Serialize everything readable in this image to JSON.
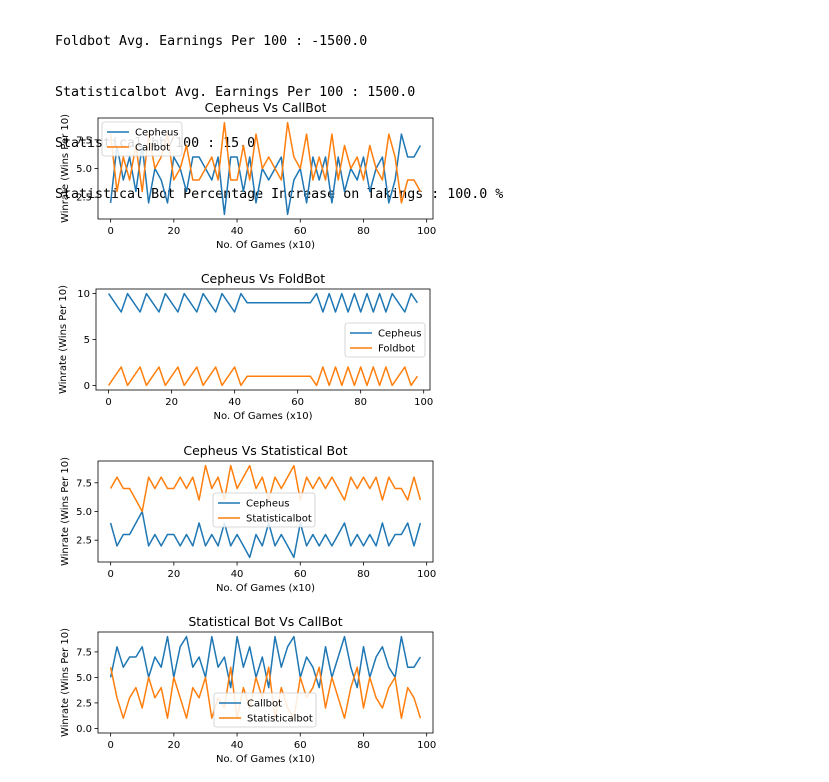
{
  "output_lines": [
    "Foldbot Avg. Earnings Per 100 : -1500.0",
    "Statisticalbot Avg. Earnings Per 100 : 1500.0",
    "Statistical bb/100 : 15.0",
    "Statistical Bot Percentage Increase on Takings : 100.0 %"
  ],
  "colors": {
    "series1": "#1f77b4",
    "series2": "#ff7f0e"
  },
  "chart_data": [
    {
      "type": "line",
      "title": "Cepheus Vs CallBot",
      "xlabel": "No. Of Games (x10)",
      "ylabel": "Winrate (Wins Per 10)",
      "x": [
        0,
        2,
        4,
        6,
        8,
        10,
        12,
        14,
        16,
        18,
        20,
        22,
        24,
        26,
        28,
        30,
        32,
        34,
        36,
        38,
        40,
        42,
        44,
        46,
        48,
        50,
        52,
        54,
        56,
        58,
        60,
        62,
        64,
        66,
        68,
        70,
        72,
        74,
        76,
        78,
        80,
        82,
        84,
        86,
        88,
        90,
        92,
        94,
        96,
        98
      ],
      "xlim": [
        -4,
        102
      ],
      "ylim": [
        0.6,
        9.4
      ],
      "xticks": [
        0,
        20,
        40,
        60,
        80,
        100
      ],
      "xtick_labels": [
        "0",
        "20",
        "40",
        "60",
        "80",
        "100"
      ],
      "yticks": [
        2.5,
        5.0,
        7.5
      ],
      "ytick_labels": [
        "2.5",
        "5.0",
        "7.5"
      ],
      "legend": "upper left",
      "series": [
        {
          "name": "Cepheus",
          "values": [
            2,
            7,
            4,
            6,
            3,
            7,
            2,
            5,
            4,
            2,
            6,
            5,
            3,
            6,
            6,
            5,
            4,
            6,
            1,
            6,
            6,
            3,
            6,
            2,
            5,
            4,
            5,
            6,
            1,
            4,
            5,
            2,
            6,
            4,
            6,
            2,
            6,
            3,
            5,
            4,
            6,
            3,
            5,
            6,
            2,
            4,
            8,
            6,
            6,
            7
          ]
        },
        {
          "name": "Callbot",
          "values": [
            8,
            3,
            6,
            4,
            7,
            3,
            8,
            5,
            6,
            8,
            4,
            5,
            7,
            4,
            4,
            5,
            6,
            4,
            9,
            4,
            4,
            7,
            4,
            8,
            5,
            6,
            5,
            4,
            9,
            6,
            5,
            8,
            4,
            6,
            4,
            8,
            4,
            7,
            5,
            6,
            4,
            7,
            5,
            4,
            8,
            6,
            2,
            4,
            4,
            3
          ]
        }
      ]
    },
    {
      "type": "line",
      "title": "Cepheus Vs FoldBot",
      "xlabel": "No. Of Games (x10)",
      "ylabel": "Winrate (Wins Per 10)",
      "x": [
        0,
        2,
        4,
        6,
        8,
        10,
        12,
        14,
        16,
        18,
        20,
        22,
        24,
        26,
        28,
        30,
        32,
        34,
        36,
        38,
        40,
        42,
        44,
        46,
        48,
        50,
        52,
        54,
        56,
        58,
        60,
        62,
        64,
        66,
        68,
        70,
        72,
        74,
        76,
        78,
        80,
        82,
        84,
        86,
        88,
        90,
        92,
        94,
        96,
        98
      ],
      "xlim": [
        -4,
        102
      ],
      "ylim": [
        -0.5,
        10.5
      ],
      "xticks": [
        0,
        20,
        40,
        60,
        80,
        100
      ],
      "xtick_labels": [
        "0",
        "20",
        "40",
        "60",
        "80",
        "100"
      ],
      "yticks": [
        0,
        5,
        10
      ],
      "ytick_labels": [
        "0",
        "5",
        "10"
      ],
      "legend": "center right",
      "series": [
        {
          "name": "Cepheus",
          "values": [
            10,
            9,
            8,
            10,
            9,
            8,
            10,
            9,
            8,
            10,
            9,
            8,
            10,
            9,
            8,
            10,
            9,
            8,
            10,
            9,
            8,
            10,
            9,
            9,
            9,
            9,
            9,
            9,
            9,
            9,
            9,
            9,
            9,
            10,
            8,
            10,
            8,
            10,
            8,
            10,
            8,
            10,
            8,
            10,
            8,
            10,
            9,
            8,
            10,
            9
          ]
        },
        {
          "name": "Foldbot",
          "values": [
            0,
            1,
            2,
            0,
            1,
            2,
            0,
            1,
            2,
            0,
            1,
            2,
            0,
            1,
            2,
            0,
            1,
            2,
            0,
            1,
            2,
            0,
            1,
            1,
            1,
            1,
            1,
            1,
            1,
            1,
            1,
            1,
            1,
            0,
            2,
            0,
            2,
            0,
            2,
            0,
            2,
            0,
            2,
            0,
            2,
            0,
            1,
            2,
            0,
            1
          ]
        }
      ]
    },
    {
      "type": "line",
      "title": "Cepheus Vs Statistical Bot",
      "xlabel": "No. Of Games (x10)",
      "ylabel": "Winrate (Wins Per 10)",
      "x": [
        0,
        2,
        4,
        6,
        8,
        10,
        12,
        14,
        16,
        18,
        20,
        22,
        24,
        26,
        28,
        30,
        32,
        34,
        36,
        38,
        40,
        42,
        44,
        46,
        48,
        50,
        52,
        54,
        56,
        58,
        60,
        62,
        64,
        66,
        68,
        70,
        72,
        74,
        76,
        78,
        80,
        82,
        84,
        86,
        88,
        90,
        92,
        94,
        96,
        98
      ],
      "xlim": [
        -4,
        102
      ],
      "ylim": [
        0.6,
        9.4
      ],
      "xticks": [
        0,
        20,
        40,
        60,
        80,
        100
      ],
      "xtick_labels": [
        "0",
        "20",
        "40",
        "60",
        "80",
        "100"
      ],
      "yticks": [
        2.5,
        5.0,
        7.5
      ],
      "ytick_labels": [
        "2.5",
        "5.0",
        "7.5"
      ],
      "legend": "center",
      "series": [
        {
          "name": "Cepheus",
          "values": [
            4,
            2,
            3,
            3,
            4,
            5,
            2,
            3,
            2,
            3,
            3,
            2,
            3,
            2,
            4,
            2,
            3,
            2,
            4,
            2,
            3,
            2,
            1,
            3,
            2,
            4,
            2,
            3,
            2,
            1,
            4,
            2,
            3,
            2,
            3,
            2,
            3,
            4,
            2,
            3,
            2,
            3,
            2,
            4,
            2,
            3,
            3,
            4,
            2,
            4
          ]
        },
        {
          "name": "Statisticalbot",
          "values": [
            7,
            8,
            7,
            7,
            6,
            5,
            8,
            7,
            8,
            7,
            7,
            8,
            7,
            8,
            6,
            9,
            7,
            8,
            6,
            9,
            7,
            8,
            9,
            7,
            8,
            6,
            8,
            7,
            8,
            9,
            6,
            8,
            7,
            8,
            7,
            8,
            7,
            6,
            8,
            7,
            8,
            7,
            8,
            6,
            8,
            7,
            7,
            6,
            8,
            6
          ]
        }
      ]
    },
    {
      "type": "line",
      "title": "Statistical Bot Vs CallBot",
      "xlabel": "No. Of Games (x10)",
      "ylabel": "Winrate (Wins Per 10)",
      "x": [
        0,
        2,
        4,
        6,
        8,
        10,
        12,
        14,
        16,
        18,
        20,
        22,
        24,
        26,
        28,
        30,
        32,
        34,
        36,
        38,
        40,
        42,
        44,
        46,
        48,
        50,
        52,
        54,
        56,
        58,
        60,
        62,
        64,
        66,
        68,
        70,
        72,
        74,
        76,
        78,
        80,
        82,
        84,
        86,
        88,
        90,
        92,
        94,
        96,
        98
      ],
      "xlim": [
        -4,
        102
      ],
      "ylim": [
        -0.45,
        9.45
      ],
      "xticks": [
        0,
        20,
        40,
        60,
        80,
        100
      ],
      "xtick_labels": [
        "0",
        "20",
        "40",
        "60",
        "80",
        "100"
      ],
      "yticks": [
        0.0,
        2.5,
        5.0,
        7.5
      ],
      "ytick_labels": [
        "0.0",
        "2.5",
        "5.0",
        "7.5"
      ],
      "legend": "lower center",
      "series": [
        {
          "name": "Callbot",
          "values": [
            5,
            8,
            6,
            7,
            7,
            8,
            5,
            7,
            6,
            9,
            5,
            8,
            9,
            6,
            7,
            5,
            9,
            6,
            7,
            4,
            9,
            6,
            8,
            5,
            7,
            4,
            9,
            6,
            8,
            9,
            5,
            7,
            6,
            4,
            8,
            5,
            7,
            9,
            6,
            4,
            8,
            5,
            7,
            8,
            6,
            5,
            9,
            6,
            6,
            7
          ]
        },
        {
          "name": "Statisticalbot",
          "values": [
            6,
            3,
            1,
            3,
            4,
            2,
            5,
            3,
            4,
            1,
            5,
            3,
            1,
            4,
            3,
            5,
            1,
            3,
            2,
            6,
            1,
            4,
            2,
            5,
            3,
            6,
            1,
            4,
            2,
            1,
            5,
            3,
            4,
            6,
            2,
            5,
            3,
            1,
            4,
            6,
            2,
            5,
            3,
            2,
            4,
            5,
            1,
            4,
            3,
            1
          ]
        }
      ]
    }
  ]
}
